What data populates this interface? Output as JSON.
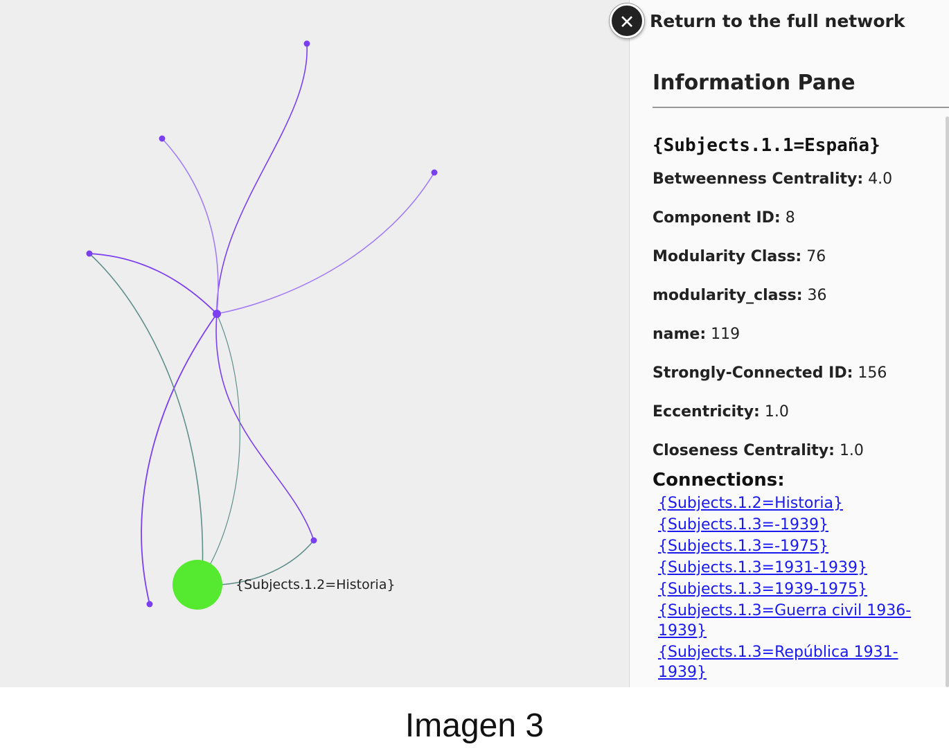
{
  "header": {
    "return_label": "Return to the full network",
    "close_glyph": "✕"
  },
  "graph": {
    "selected_node_label": "{Subjects.1.2=Historia}",
    "colors": {
      "background": "#eeeeee",
      "purple_edge": "#7b3ff2",
      "light_purple_edge": "#a27cf5",
      "teal_edge": "#5f8f8a",
      "node": "#7b3ff2",
      "selected_node": "#55ea2f"
    }
  },
  "info_pane": {
    "title": "Information Pane",
    "node_name": "{Subjects.1.1=España}",
    "attributes": [
      {
        "key": "Betweenness Centrality:",
        "value": "4.0"
      },
      {
        "key": "Component ID:",
        "value": "8"
      },
      {
        "key": "Modularity Class:",
        "value": "76"
      },
      {
        "key": "modularity_class:",
        "value": "36"
      },
      {
        "key": "name:",
        "value": "119"
      },
      {
        "key": "Strongly-Connected ID:",
        "value": "156"
      },
      {
        "key": "Eccentricity:",
        "value": "1.0"
      },
      {
        "key": "Closeness Centrality:",
        "value": "1.0"
      }
    ],
    "connections_heading": "Connections:",
    "connections": [
      "{Subjects.1.2=Historia}",
      "{Subjects.1.3=-1939}",
      "{Subjects.1.3=-1975}",
      "{Subjects.1.3=1931-1939}",
      "{Subjects.1.3=1939-1975}",
      "{Subjects.1.3=Guerra civil 1936-1939}",
      "{Subjects.1.3=República 1931-1939}"
    ]
  },
  "caption": "Imagen 3"
}
